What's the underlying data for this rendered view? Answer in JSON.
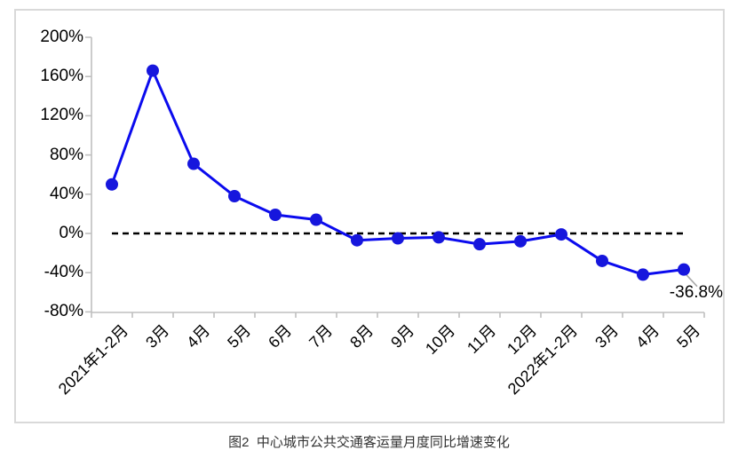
{
  "caption": "图2  中心城市公共交通客运量月度同比增速变化",
  "colors": {
    "line": "#0B0BEE",
    "marker": "#1616DD",
    "zero_line": "#000000",
    "axis": "#BFBFBF",
    "frame_border": "#D9D9D9",
    "leader": "#A9A9A9",
    "text": "#000000"
  },
  "chart_data": {
    "type": "line",
    "title": "图2  中心城市公共交通客运量月度同比增速变化",
    "x": [
      "2021年1-2月",
      "3月",
      "4月",
      "5月",
      "6月",
      "7月",
      "8月",
      "9月",
      "10月",
      "11月",
      "12月",
      "2022年1-2月",
      "3月",
      "4月",
      "5月"
    ],
    "series": [
      {
        "name": "中心城市公共交通客运量月度同比增速",
        "values": [
          50,
          166,
          71,
          38,
          19,
          14,
          -7,
          -5,
          -4,
          -11,
          -8,
          -1,
          -28,
          -42,
          -36.8
        ]
      }
    ],
    "ylim": [
      -80,
      200
    ],
    "yticks": [
      200,
      160,
      120,
      80,
      40,
      0,
      -40,
      -80
    ],
    "ytick_labels": [
      "200%",
      "160%",
      "120%",
      "80%",
      "40%",
      "0%",
      "-40%",
      "-80%"
    ],
    "zero_reference_line": true,
    "grid": false,
    "legend": "none",
    "data_label": {
      "index": 14,
      "text": "-36.8%"
    }
  }
}
